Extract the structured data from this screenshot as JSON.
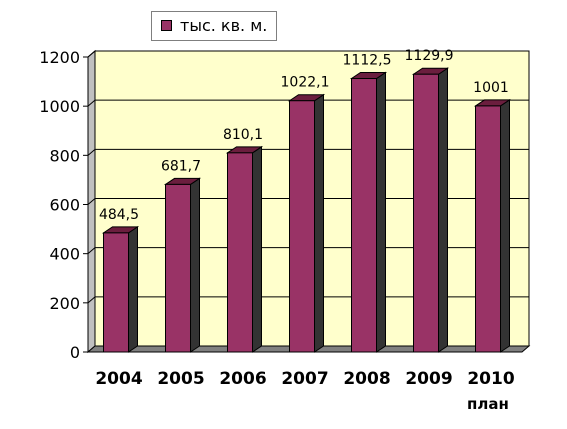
{
  "chart_data": {
    "type": "bar",
    "categories": [
      "2004",
      "2005",
      "2006",
      "2007",
      "2008",
      "2009",
      "2010"
    ],
    "values": [
      484.5,
      681.7,
      810.1,
      1022.1,
      1112.5,
      1129.9,
      1001
    ],
    "data_labels": [
      "484,5",
      "681,7",
      "810,1",
      "1022,1",
      "1112,5",
      "1129,9",
      "1001"
    ],
    "series": [
      {
        "name": "тыс. кв. м.",
        "values": [
          484.5,
          681.7,
          810.1,
          1022.1,
          1112.5,
          1129.9,
          1001
        ]
      }
    ],
    "ylim": [
      0,
      1200
    ],
    "yticks": [
      0,
      200,
      400,
      600,
      800,
      1000,
      1200
    ],
    "grid": true,
    "legend_position": "top-left",
    "annotation": "план",
    "colors": {
      "bar_front": "#993366",
      "bar_top": "#6b1e3e",
      "bar_side": "#333333",
      "plot_back": "#ffffcc",
      "floor": "#808080"
    }
  }
}
